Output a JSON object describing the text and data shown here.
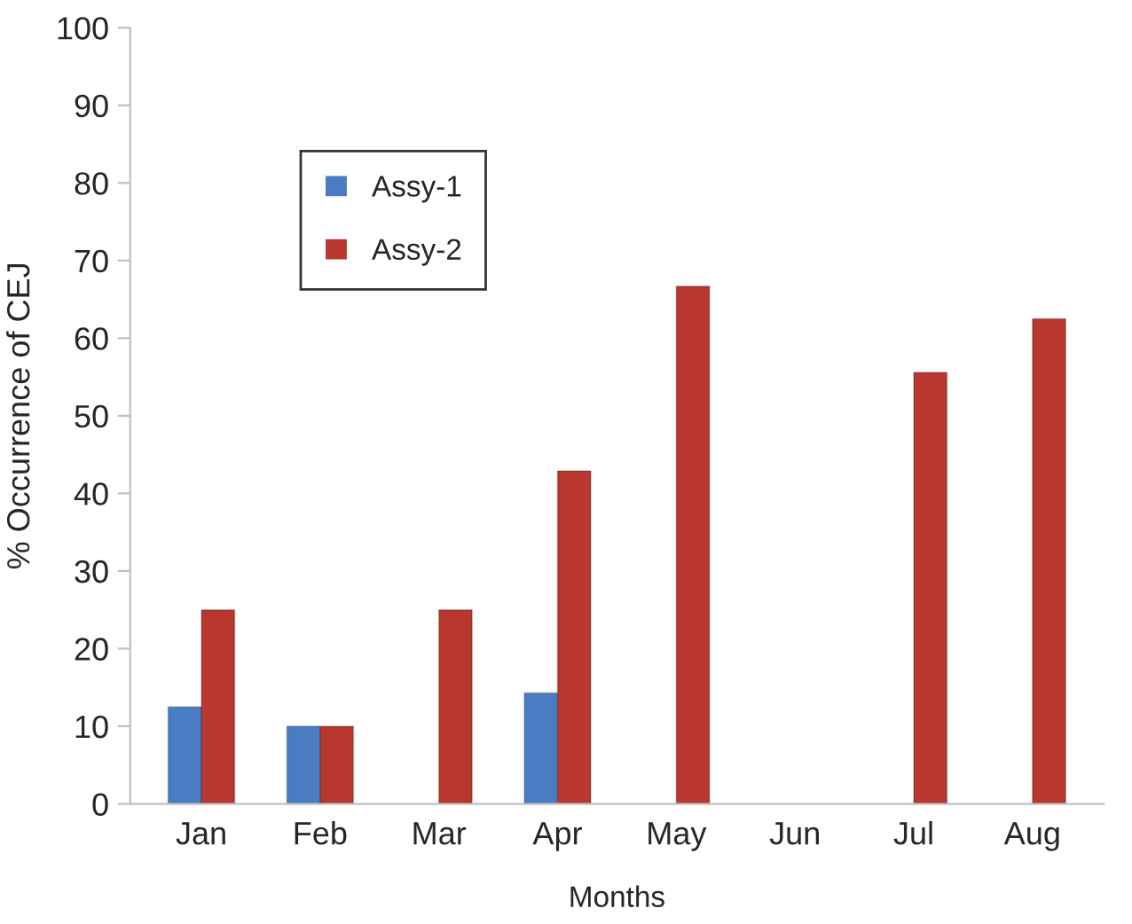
{
  "chart_data": {
    "type": "bar",
    "xlabel": "Months",
    "ylabel": "% Occurrence of CEJ",
    "categories": [
      "Jan",
      "Feb",
      "Mar",
      "Apr",
      "May",
      "Jun",
      "Jul",
      "Aug"
    ],
    "series": [
      {
        "name": "Assy-1",
        "color": "#4a7cc4",
        "values": [
          12.5,
          10,
          null,
          14.3,
          null,
          null,
          null,
          null
        ]
      },
      {
        "name": "Assy-2",
        "color": "#b8372f",
        "values": [
          25,
          10,
          25,
          42.9,
          66.7,
          null,
          55.6,
          62.5
        ]
      }
    ],
    "ylim": [
      0,
      100
    ],
    "yticks": [
      0,
      10,
      20,
      30,
      40,
      50,
      60,
      70,
      80,
      90,
      100
    ],
    "grid": false,
    "legend": "top left"
  }
}
